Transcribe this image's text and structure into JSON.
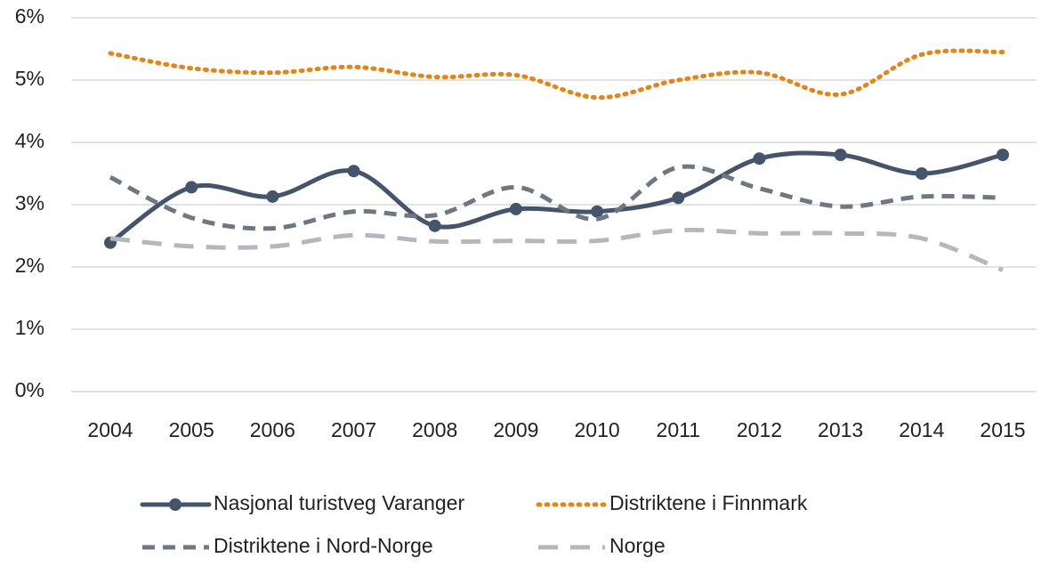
{
  "chart_data": {
    "type": "line",
    "smooth": true,
    "grid": true,
    "legend": "bottom",
    "x": [
      "2004",
      "2005",
      "2006",
      "2007",
      "2008",
      "2009",
      "2010",
      "2011",
      "2012",
      "2013",
      "2014",
      "2015"
    ],
    "ylim": [
      0,
      6
    ],
    "yticks": [
      {
        "value": 0,
        "label": "0%"
      },
      {
        "value": 1,
        "label": "1%"
      },
      {
        "value": 2,
        "label": "2%"
      },
      {
        "value": 3,
        "label": "3%"
      },
      {
        "value": 4,
        "label": "4%"
      },
      {
        "value": 5,
        "label": "5%"
      },
      {
        "value": 6,
        "label": "6%"
      }
    ],
    "series": [
      {
        "name": "Nasjonal turistveg Varanger",
        "color": "#44546a",
        "dash": "solid",
        "marker": "circle",
        "values": [
          2.39,
          3.28,
          3.13,
          3.54,
          2.66,
          2.93,
          2.89,
          3.11,
          3.74,
          3.8,
          3.5,
          3.8
        ]
      },
      {
        "name": "Distriktene i Finnmark",
        "color": "#e0861a",
        "dash": "dot",
        "values": [
          5.43,
          5.19,
          5.12,
          5.21,
          5.05,
          5.08,
          4.72,
          5.0,
          5.12,
          4.77,
          5.41,
          5.45
        ]
      },
      {
        "name": "Distriktene i Nord-Norge",
        "color": "#6f7782",
        "dash": "dash",
        "values": [
          3.44,
          2.79,
          2.62,
          2.89,
          2.83,
          3.28,
          2.77,
          3.6,
          3.26,
          2.97,
          3.13,
          3.11
        ]
      },
      {
        "name": "Norge",
        "color": "#b4b8bd",
        "dash": "longdash",
        "values": [
          2.46,
          2.33,
          2.33,
          2.51,
          2.41,
          2.42,
          2.42,
          2.59,
          2.54,
          2.54,
          2.46,
          1.95
        ]
      }
    ]
  }
}
